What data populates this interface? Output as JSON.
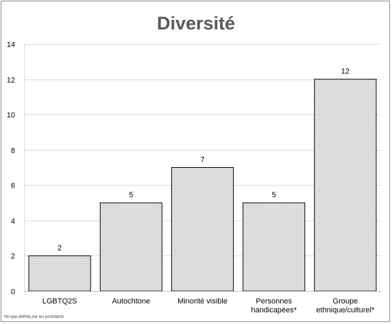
{
  "chart_data": {
    "type": "bar",
    "title": "Diversité",
    "categories": [
      [
        "LGBTQ2S"
      ],
      [
        "Autochtone"
      ],
      [
        "Minorité visible"
      ],
      [
        "Personnes",
        "handicapées*"
      ],
      [
        "Groupe",
        "ethnique/culturel*"
      ]
    ],
    "values": [
      2,
      5,
      7,
      5,
      12
    ],
    "ylim": [
      0,
      14
    ],
    "yticks": [
      0,
      2,
      4,
      6,
      8,
      10,
      12,
      14
    ],
    "grid": true,
    "legend": "none",
    "bar_color": "#d9d9d9",
    "bar_border_color": "#000000"
  },
  "footnote": "*tel que définie par les postulants"
}
